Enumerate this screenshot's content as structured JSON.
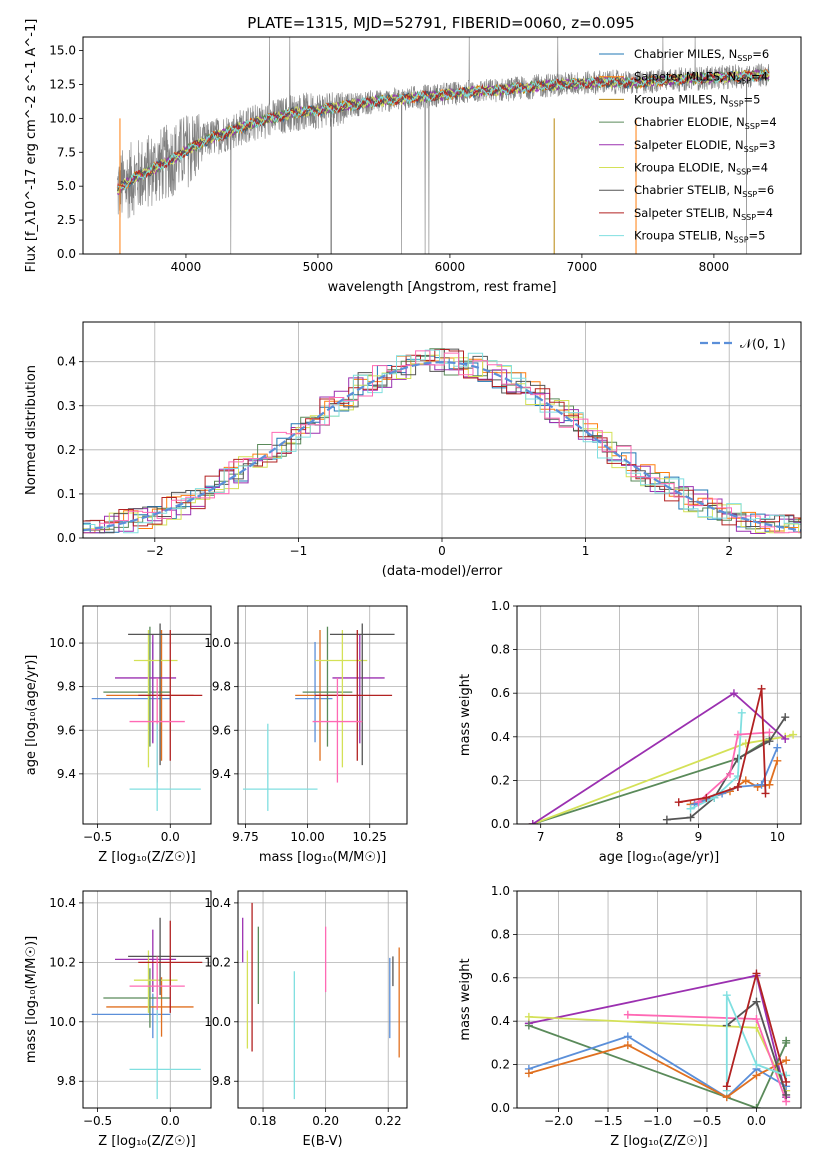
{
  "figure_title": "PLATE=1315, MJD=52791, FIBERID=0060, z=0.095",
  "chart_data": [
    {
      "id": "spectrum",
      "type": "line",
      "xlabel": "wavelength [Angstrom, rest frame]",
      "ylabel": "Flux [f_λ10^-17 erg cm^-2 s^-1 A^-1]",
      "xlim": [
        3220,
        8660
      ],
      "ylim": [
        0,
        16
      ],
      "xticks": [
        4000,
        5000,
        6000,
        7000,
        8000
      ],
      "yticks": [
        0.0,
        2.5,
        5.0,
        7.5,
        10.0,
        12.5,
        15.0
      ],
      "tick_labels_y": [
        "0.0",
        "2.5",
        "5.0",
        "7.5",
        "10.0",
        "12.5",
        "15.0"
      ],
      "grid": false,
      "legend_position": "upper-right",
      "data_color": "#7f7f7f",
      "continuum": {
        "x": [
          3480,
          3600,
          3700,
          3800,
          3900,
          4000,
          4100,
          4200,
          4300,
          4400,
          4500,
          4600,
          4700,
          4800,
          4900,
          5000,
          5200,
          5400,
          5600,
          5800,
          6000,
          6200,
          6400,
          6600,
          6800,
          7000,
          7200,
          7400,
          7600,
          7800,
          8000,
          8200,
          8400
        ],
        "y": [
          4.7,
          5.6,
          6.0,
          6.5,
          7.0,
          7.6,
          8.1,
          8.6,
          8.9,
          9.3,
          9.6,
          9.9,
          10.1,
          10.4,
          10.5,
          10.6,
          10.9,
          11.2,
          11.4,
          11.6,
          11.8,
          12.0,
          12.1,
          12.3,
          12.5,
          12.6,
          12.7,
          12.6,
          12.8,
          12.9,
          13.0,
          13.1,
          13.2
        ]
      },
      "legend": [
        {
          "label": "Chabrier MILES, N",
          "sub": "SSP",
          "suffix": "=6",
          "color": "#1f77b4"
        },
        {
          "label": "Salpeter MILES, N",
          "sub": "SSP",
          "suffix": "=4",
          "color": "#ff7f0e"
        },
        {
          "label": "Kroupa MILES, N",
          "sub": "SSP",
          "suffix": "=5",
          "color": "#b8860b"
        },
        {
          "label": "Chabrier ELODIE, N",
          "sub": "SSP",
          "suffix": "=4",
          "color": "#5a8a5a"
        },
        {
          "label": "Salpeter ELODIE, N",
          "sub": "SSP",
          "suffix": "=3",
          "color": "#9b30b0"
        },
        {
          "label": "Kroupa ELODIE, N",
          "sub": "SSP",
          "suffix": "=4",
          "color": "#d4e157"
        },
        {
          "label": "Chabrier STELIB, N",
          "sub": "SSP",
          "suffix": "=6",
          "color": "#555555"
        },
        {
          "label": "Salpeter STELIB, N",
          "sub": "SSP",
          "suffix": "=4",
          "color": "#b22222"
        },
        {
          "label": "Kroupa STELIB, N",
          "sub": "SSP",
          "suffix": "=5",
          "color": "#80dfe0"
        }
      ]
    },
    {
      "id": "residuals",
      "type": "line",
      "xlabel": "(data-model)/error",
      "ylabel": "Normed distribution",
      "xlim": [
        -2.5,
        2.5
      ],
      "ylim": [
        0,
        0.49
      ],
      "xticks": [
        -2,
        -1,
        0,
        1,
        2
      ],
      "tick_labels_x": [
        "−2",
        "−1",
        "0",
        "1",
        "2"
      ],
      "yticks": [
        0.0,
        0.1,
        0.2,
        0.3,
        0.4
      ],
      "tick_labels_y": [
        "0.0",
        "0.1",
        "0.2",
        "0.3",
        "0.4"
      ],
      "grid": true,
      "legend_position": "upper-right",
      "legend_label": "𝒩(0, 1)",
      "gaussian_color": "#5b8fd9",
      "series_colors": [
        "#1f77b4",
        "#ff7f0e",
        "#5a8a5a",
        "#9b30b0",
        "#d4e157",
        "#555555",
        "#b22222",
        "#80dfe0",
        "#ff69b4"
      ]
    },
    {
      "id": "age_vs_Z",
      "type": "scatter",
      "xlabel": "Z [log₁₀(Z/Z☉)]",
      "ylabel": "age  [log₁₀(age/yr)]",
      "xlim": [
        -0.6,
        0.28
      ],
      "ylim": [
        9.17,
        10.17
      ],
      "xticks": [
        -0.5,
        0.0
      ],
      "tick_labels_x": [
        "−0.5",
        "0.0"
      ],
      "yticks": [
        9.4,
        9.6,
        9.8,
        10.0
      ],
      "tick_labels_y": [
        "9.4",
        "9.6",
        "9.8",
        "10.0"
      ],
      "grid": true,
      "errorbars": [
        {
          "x": -0.12,
          "xerr": [
            0.42,
            0.12
          ],
          "y": 9.745,
          "yerr": [
            0.2,
            0.26
          ],
          "color": "#5b8fd9"
        },
        {
          "x": -0.06,
          "xerr": [
            0.38,
            0.22
          ],
          "y": 9.76,
          "yerr": [
            0.3,
            0.3
          ],
          "color": "#e07020"
        },
        {
          "x": -0.14,
          "xerr": [
            0.32,
            0.14
          ],
          "y": 9.775,
          "yerr": [
            0.25,
            0.3
          ],
          "color": "#5a8a5a"
        },
        {
          "x": -0.12,
          "xerr": [
            0.26,
            0.16
          ],
          "y": 9.84,
          "yerr": [
            0.3,
            0.2
          ],
          "color": "#9b30b0"
        },
        {
          "x": -0.15,
          "xerr": [
            0.1,
            0.2
          ],
          "y": 9.92,
          "yerr": [
            0.49,
            0.14
          ],
          "color": "#d4e157"
        },
        {
          "x": -0.07,
          "xerr": [
            0.22,
            0.35
          ],
          "y": 10.04,
          "yerr": [
            0.6,
            0.05
          ],
          "color": "#555555"
        },
        {
          "x": 0.0,
          "xerr": [
            0.22,
            0.22
          ],
          "y": 9.76,
          "yerr": [
            0.3,
            0.3
          ],
          "color": "#b22222"
        },
        {
          "x": -0.09,
          "xerr": [
            0.19,
            0.19
          ],
          "y": 9.64,
          "yerr": [
            0.28,
            0.2
          ],
          "color": "#ff69b4"
        },
        {
          "x": -0.09,
          "xerr": [
            0.19,
            0.3
          ],
          "y": 9.33,
          "yerr": [
            0.1,
            0.3
          ],
          "color": "#80dfe0"
        }
      ]
    },
    {
      "id": "age_vs_mass",
      "type": "scatter",
      "xlabel": "mass [log₁₀(M/M☉)]",
      "ylabel": "",
      "xlim": [
        9.72,
        10.4
      ],
      "ylim": [
        9.17,
        10.17
      ],
      "xticks": [
        9.75,
        10.0,
        10.25
      ],
      "tick_labels_x": [
        "9.75",
        "10.00",
        "10.25"
      ],
      "yticks": [
        9.4,
        9.6,
        9.8,
        10.0
      ],
      "tick_labels_y": [
        "9.4",
        "9.6",
        "9.8",
        "10.0"
      ],
      "grid": true,
      "errorbars": [
        {
          "x": 10.03,
          "xerr": [
            0.08,
            0.07
          ],
          "y": 9.745,
          "yerr": [
            0.2,
            0.26
          ],
          "color": "#5b8fd9"
        },
        {
          "x": 10.05,
          "xerr": [
            0.1,
            0.1
          ],
          "y": 9.76,
          "yerr": [
            0.3,
            0.3
          ],
          "color": "#e07020"
        },
        {
          "x": 10.08,
          "xerr": [
            0.1,
            0.1
          ],
          "y": 9.775,
          "yerr": [
            0.25,
            0.3
          ],
          "color": "#5a8a5a"
        },
        {
          "x": 10.21,
          "xerr": [
            0.11,
            0.1
          ],
          "y": 9.84,
          "yerr": [
            0.3,
            0.2
          ],
          "color": "#9b30b0"
        },
        {
          "x": 10.14,
          "xerr": [
            0.11,
            0.1
          ],
          "y": 9.92,
          "yerr": [
            0.49,
            0.14
          ],
          "color": "#d4e157"
        },
        {
          "x": 10.22,
          "xerr": [
            0.13,
            0.13
          ],
          "y": 10.04,
          "yerr": [
            0.6,
            0.05
          ],
          "color": "#555555"
        },
        {
          "x": 10.2,
          "xerr": [
            0.17,
            0.14
          ],
          "y": 9.76,
          "yerr": [
            0.3,
            0.3
          ],
          "color": "#b22222"
        },
        {
          "x": 10.12,
          "xerr": [
            0.1,
            0.1
          ],
          "y": 9.64,
          "yerr": [
            0.28,
            0.2
          ],
          "color": "#ff69b4"
        },
        {
          "x": 9.84,
          "xerr": [
            0.1,
            0.2
          ],
          "y": 9.33,
          "yerr": [
            0.1,
            0.3
          ],
          "color": "#80dfe0"
        }
      ]
    },
    {
      "id": "weight_vs_age",
      "type": "line",
      "xlabel": "age  [log₁₀(age/yr)]",
      "ylabel": "mass weight",
      "xlim": [
        6.7,
        10.3
      ],
      "ylim": [
        0,
        1.0
      ],
      "xticks": [
        7,
        8,
        9,
        10
      ],
      "tick_labels_x": [
        "7",
        "8",
        "9",
        "10"
      ],
      "yticks": [
        0.0,
        0.2,
        0.4,
        0.6,
        0.8,
        1.0
      ],
      "tick_labels_y": [
        "0.0",
        "0.2",
        "0.4",
        "0.6",
        "0.8",
        "1.0"
      ],
      "grid": true,
      "series": [
        {
          "color": "#5a8a5a",
          "x": [
            6.9,
            9.5,
            9.9
          ],
          "y": [
            0.0,
            0.3,
            0.39
          ]
        },
        {
          "color": "#d4e157",
          "x": [
            6.9,
            9.6,
            10.1,
            10.2
          ],
          "y": [
            0.0,
            0.37,
            0.4,
            0.41
          ]
        },
        {
          "color": "#9b30b0",
          "x": [
            6.9,
            9.45,
            10.1
          ],
          "y": [
            0.0,
            0.6,
            0.39
          ]
        },
        {
          "color": "#555555",
          "x": [
            8.6,
            8.9,
            9.2,
            9.5,
            9.9,
            10.1
          ],
          "y": [
            0.02,
            0.03,
            0.12,
            0.3,
            0.38,
            0.49
          ]
        },
        {
          "color": "#e07020",
          "x": [
            8.9,
            9.4,
            9.6,
            9.75,
            9.9,
            10.0
          ],
          "y": [
            0.09,
            0.15,
            0.2,
            0.17,
            0.18,
            0.29
          ]
        },
        {
          "color": "#5b8fd9",
          "x": [
            8.95,
            9.3,
            9.5,
            9.8,
            10.0
          ],
          "y": [
            0.09,
            0.14,
            0.17,
            0.18,
            0.35
          ]
        },
        {
          "color": "#80dfe0",
          "x": [
            8.9,
            9.2,
            9.5,
            9.55
          ],
          "y": [
            0.07,
            0.12,
            0.22,
            0.51
          ]
        },
        {
          "color": "#ff69b4",
          "x": [
            9.0,
            9.4,
            9.5,
            9.9
          ],
          "y": [
            0.1,
            0.23,
            0.41,
            0.42
          ]
        },
        {
          "color": "#b22222",
          "x": [
            8.75,
            9.1,
            9.5,
            9.8,
            9.85
          ],
          "y": [
            0.1,
            0.12,
            0.17,
            0.62,
            0.14
          ]
        }
      ]
    },
    {
      "id": "mass_vs_Z",
      "type": "scatter",
      "xlabel": "Z [log₁₀(Z/Z☉)]",
      "ylabel": "mass [log₁₀(M/M☉)]",
      "xlim": [
        -0.6,
        0.28
      ],
      "ylim": [
        9.71,
        10.44
      ],
      "xticks": [
        -0.5,
        0.0
      ],
      "tick_labels_x": [
        "−0.5",
        "0.0"
      ],
      "yticks": [
        9.8,
        10.0,
        10.2,
        10.4
      ],
      "tick_labels_y": [
        "9.8",
        "10.0",
        "10.2",
        "10.4"
      ],
      "grid": true,
      "errorbars": [
        {
          "x": -0.12,
          "xerr": [
            0.42,
            0.12
          ],
          "y": 10.025,
          "yerr": [
            0.08,
            0.07
          ],
          "color": "#5b8fd9"
        },
        {
          "x": -0.06,
          "xerr": [
            0.38,
            0.22
          ],
          "y": 10.05,
          "yerr": [
            0.1,
            0.1
          ],
          "color": "#e07020"
        },
        {
          "x": -0.14,
          "xerr": [
            0.32,
            0.14
          ],
          "y": 10.08,
          "yerr": [
            0.1,
            0.1
          ],
          "color": "#5a8a5a"
        },
        {
          "x": -0.12,
          "xerr": [
            0.26,
            0.16
          ],
          "y": 10.21,
          "yerr": [
            0.11,
            0.1
          ],
          "color": "#9b30b0"
        },
        {
          "x": -0.15,
          "xerr": [
            0.1,
            0.2
          ],
          "y": 10.14,
          "yerr": [
            0.11,
            0.1
          ],
          "color": "#d4e157"
        },
        {
          "x": -0.07,
          "xerr": [
            0.22,
            0.35
          ],
          "y": 10.22,
          "yerr": [
            0.13,
            0.13
          ],
          "color": "#555555"
        },
        {
          "x": 0.0,
          "xerr": [
            0.22,
            0.22
          ],
          "y": 10.2,
          "yerr": [
            0.17,
            0.14
          ],
          "color": "#b22222"
        },
        {
          "x": -0.09,
          "xerr": [
            0.19,
            0.19
          ],
          "y": 10.12,
          "yerr": [
            0.1,
            0.1
          ],
          "color": "#ff69b4"
        },
        {
          "x": -0.09,
          "xerr": [
            0.19,
            0.3
          ],
          "y": 9.84,
          "yerr": [
            0.1,
            0.2
          ],
          "color": "#80dfe0"
        }
      ]
    },
    {
      "id": "mass_vs_ebv",
      "type": "scatter",
      "xlabel": "E(B-V)",
      "ylabel": "",
      "xlim": [
        0.172,
        0.226
      ],
      "ylim": [
        9.71,
        10.44
      ],
      "xticks": [
        0.18,
        0.2,
        0.22
      ],
      "tick_labels_x": [
        "0.18",
        "0.20",
        "0.22"
      ],
      "yticks": [
        9.8,
        10.0,
        10.2,
        10.4
      ],
      "tick_labels_y": [
        "9.8",
        "10.0",
        "10.2",
        "10.4"
      ],
      "grid": true,
      "errorbars": [
        {
          "x": 0.2205,
          "y": 10.025,
          "yerr": [
            0.08,
            0.19
          ],
          "color": "#5b8fd9"
        },
        {
          "x": 0.2235,
          "y": 10.05,
          "yerr": [
            0.17,
            0.2
          ],
          "color": "#e07020"
        },
        {
          "x": 0.1785,
          "y": 10.16,
          "yerr": [
            0.1,
            0.16
          ],
          "color": "#5a8a5a"
        },
        {
          "x": 0.1735,
          "y": 10.22,
          "yerr": [
            0.02,
            0.13
          ],
          "color": "#9b30b0"
        },
        {
          "x": 0.175,
          "y": 10.11,
          "yerr": [
            0.2,
            0.13
          ],
          "color": "#d4e157"
        },
        {
          "x": 0.2215,
          "y": 10.17,
          "yerr": [
            0.05,
            0.05
          ],
          "color": "#555555"
        },
        {
          "x": 0.1765,
          "y": 10.2,
          "yerr": [
            0.3,
            0.2
          ],
          "color": "#b22222"
        },
        {
          "x": 0.2,
          "y": 10.22,
          "yerr": [
            0.12,
            0.1
          ],
          "color": "#ff69b4"
        },
        {
          "x": 0.19,
          "y": 9.91,
          "yerr": [
            0.17,
            0.26
          ],
          "color": "#80dfe0"
        }
      ]
    },
    {
      "id": "weight_vs_Z",
      "type": "line",
      "xlabel": "Z [log₁₀(Z/Z☉)]",
      "ylabel": "mass weight",
      "xlim": [
        -2.42,
        0.45
      ],
      "ylim": [
        0,
        1.0
      ],
      "xticks": [
        -2.0,
        -1.5,
        -1.0,
        -0.5,
        0.0
      ],
      "tick_labels_x": [
        "−2.0",
        "−1.5",
        "−1.0",
        "−0.5",
        "0.0"
      ],
      "yticks": [
        0.0,
        0.2,
        0.4,
        0.6,
        0.8,
        1.0
      ],
      "tick_labels_y": [
        "0.0",
        "0.2",
        "0.4",
        "0.6",
        "0.8",
        "1.0"
      ],
      "grid": true,
      "series": [
        {
          "color": "#9b30b0",
          "x": [
            -2.3,
            0.0,
            0.3
          ],
          "y": [
            0.39,
            0.61,
            0.05
          ]
        },
        {
          "color": "#d4e157",
          "x": [
            -2.3,
            0.0,
            0.3
          ],
          "y": [
            0.42,
            0.37,
            0.08
          ]
        },
        {
          "color": "#5a8a5a",
          "x": [
            -2.3,
            0.0,
            0.3,
            0.3
          ],
          "y": [
            0.38,
            0.0,
            0.3,
            0.31
          ]
        },
        {
          "color": "#5b8fd9",
          "x": [
            -2.3,
            -1.3,
            -0.3,
            0.0,
            0.3
          ],
          "y": [
            0.18,
            0.33,
            0.05,
            0.18,
            0.1
          ]
        },
        {
          "color": "#e07020",
          "x": [
            -2.3,
            -1.3,
            -0.3,
            0.0,
            0.3
          ],
          "y": [
            0.16,
            0.29,
            0.05,
            0.15,
            0.22
          ]
        },
        {
          "color": "#ff69b4",
          "x": [
            -1.3,
            0.0,
            0.3
          ],
          "y": [
            0.43,
            0.41,
            0.03
          ]
        },
        {
          "color": "#555555",
          "x": [
            -0.3,
            0.0,
            0.3
          ],
          "y": [
            0.38,
            0.49,
            0.06
          ]
        },
        {
          "color": "#80dfe0",
          "x": [
            -0.3,
            -0.3,
            0.0,
            0.3
          ],
          "y": [
            0.08,
            0.52,
            0.2,
            0.15
          ]
        },
        {
          "color": "#b22222",
          "x": [
            -0.3,
            0.0,
            0.3
          ],
          "y": [
            0.1,
            0.62,
            0.12
          ]
        }
      ]
    }
  ]
}
